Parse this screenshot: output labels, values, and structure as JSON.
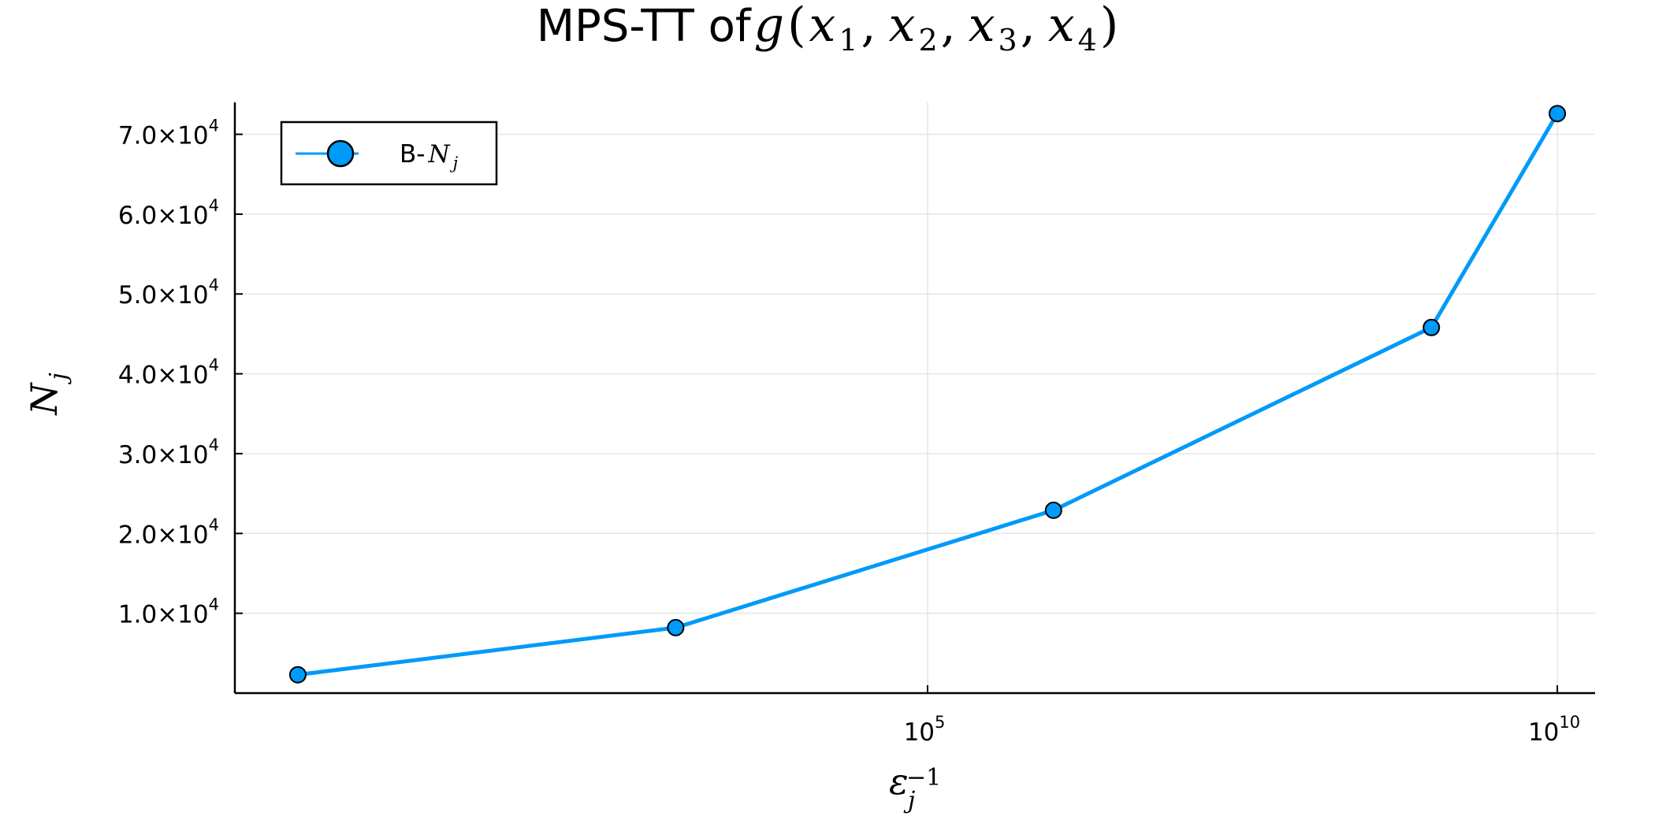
{
  "chart_data": {
    "type": "line",
    "title_prefix": "MPS-TT of",
    "title_math": {
      "func": "g",
      "open": "(",
      "args": [
        {
          "var": "x",
          "sub": "1"
        },
        {
          "var": "x",
          "sub": "2"
        },
        {
          "var": "x",
          "sub": "3"
        },
        {
          "var": "x",
          "sub": "4"
        }
      ],
      "sep": ",",
      "close": ")"
    },
    "xlabel": {
      "base": "ε",
      "sub": "j",
      "sup": "−1"
    },
    "ylabel": {
      "base": "N",
      "sub": "j"
    },
    "xscale": "log10",
    "xlim_log10": [
      -0.5,
      10.3
    ],
    "ylim": [
      0,
      74000
    ],
    "xticks": [
      {
        "log10": 5,
        "base": "10",
        "exp": "5"
      },
      {
        "log10": 10,
        "base": "10",
        "exp": "10"
      }
    ],
    "yticks": [
      {
        "value": 10000,
        "mantissa": "1.0×10",
        "exp": "4"
      },
      {
        "value": 20000,
        "mantissa": "2.0×10",
        "exp": "4"
      },
      {
        "value": 30000,
        "mantissa": "3.0×10",
        "exp": "4"
      },
      {
        "value": 40000,
        "mantissa": "4.0×10",
        "exp": "4"
      },
      {
        "value": 50000,
        "mantissa": "5.0×10",
        "exp": "4"
      },
      {
        "value": 60000,
        "mantissa": "6.0×10",
        "exp": "4"
      },
      {
        "value": 70000,
        "mantissa": "7.0×10",
        "exp": "4"
      }
    ],
    "grid": true,
    "legend_position": "top-left",
    "series": [
      {
        "name_prefix": "B-",
        "name_math": {
          "base": "N",
          "sub": "j"
        },
        "color": "#009af9",
        "marker": "circle",
        "x": [
          1,
          1000,
          1000000,
          1000000000,
          10000000000
        ],
        "y": [
          2300,
          8200,
          22900,
          45800,
          72600
        ]
      }
    ]
  }
}
